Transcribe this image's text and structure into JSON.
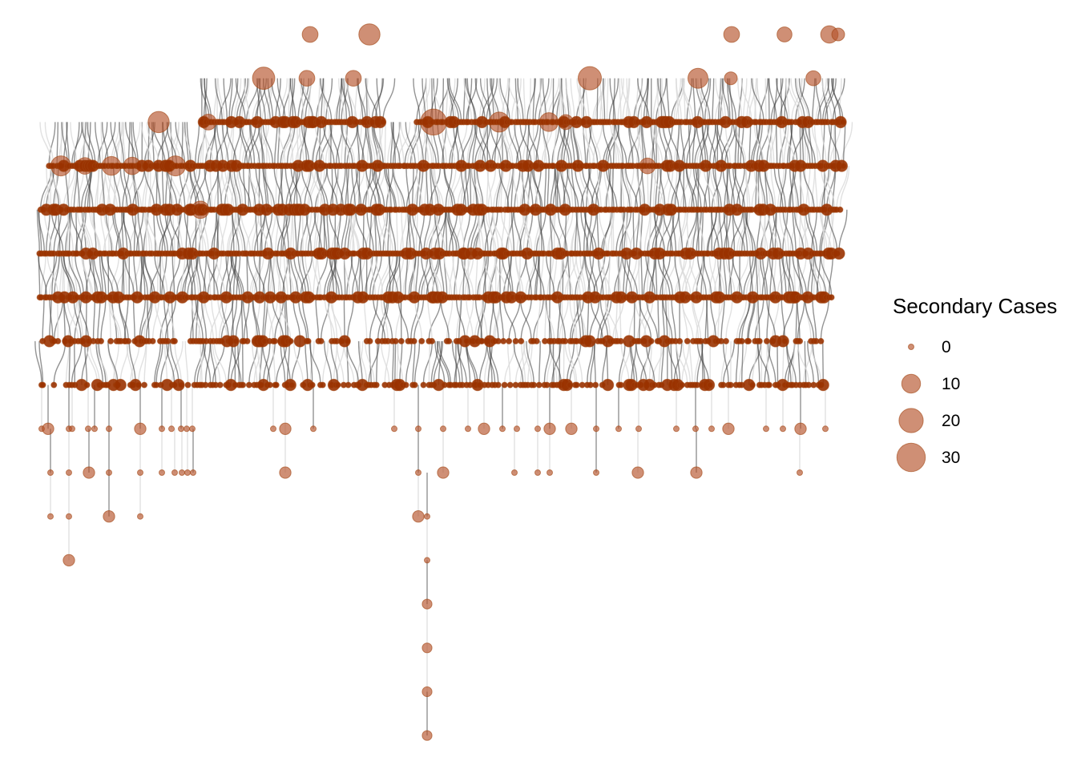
{
  "legend": {
    "title": "Secondary Cases",
    "entries": [
      {
        "label": "0",
        "value": 0
      },
      {
        "label": "10",
        "value": 10
      },
      {
        "label": "20",
        "value": 20
      },
      {
        "label": "30",
        "value": 30
      }
    ]
  },
  "colors": {
    "node_fill": "#b5532b",
    "node_stroke": "#a0420f",
    "dense_node": "#9a3200",
    "edge": "#3a3a3a",
    "edge_light": "#d9d9d9"
  }
}
